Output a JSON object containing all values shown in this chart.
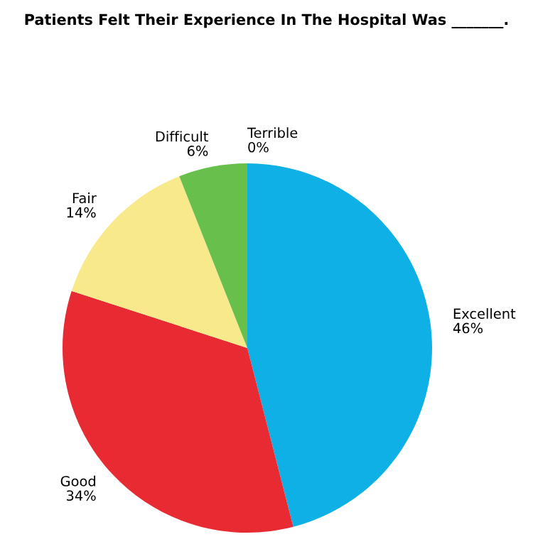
{
  "chart_data": {
    "type": "pie",
    "title": "Patients Felt Their Experience In The Hospital Was _______.",
    "categories": [
      "Excellent",
      "Good",
      "Fair",
      "Difficult",
      "Terrible"
    ],
    "values": [
      46,
      34,
      14,
      6,
      0
    ],
    "colors": [
      "#0eb0e6",
      "#e82a32",
      "#f8e98a",
      "#68bf4b",
      "#999999"
    ],
    "value_labels": [
      "46%",
      "34%",
      "14%",
      "6%",
      "0%"
    ]
  }
}
